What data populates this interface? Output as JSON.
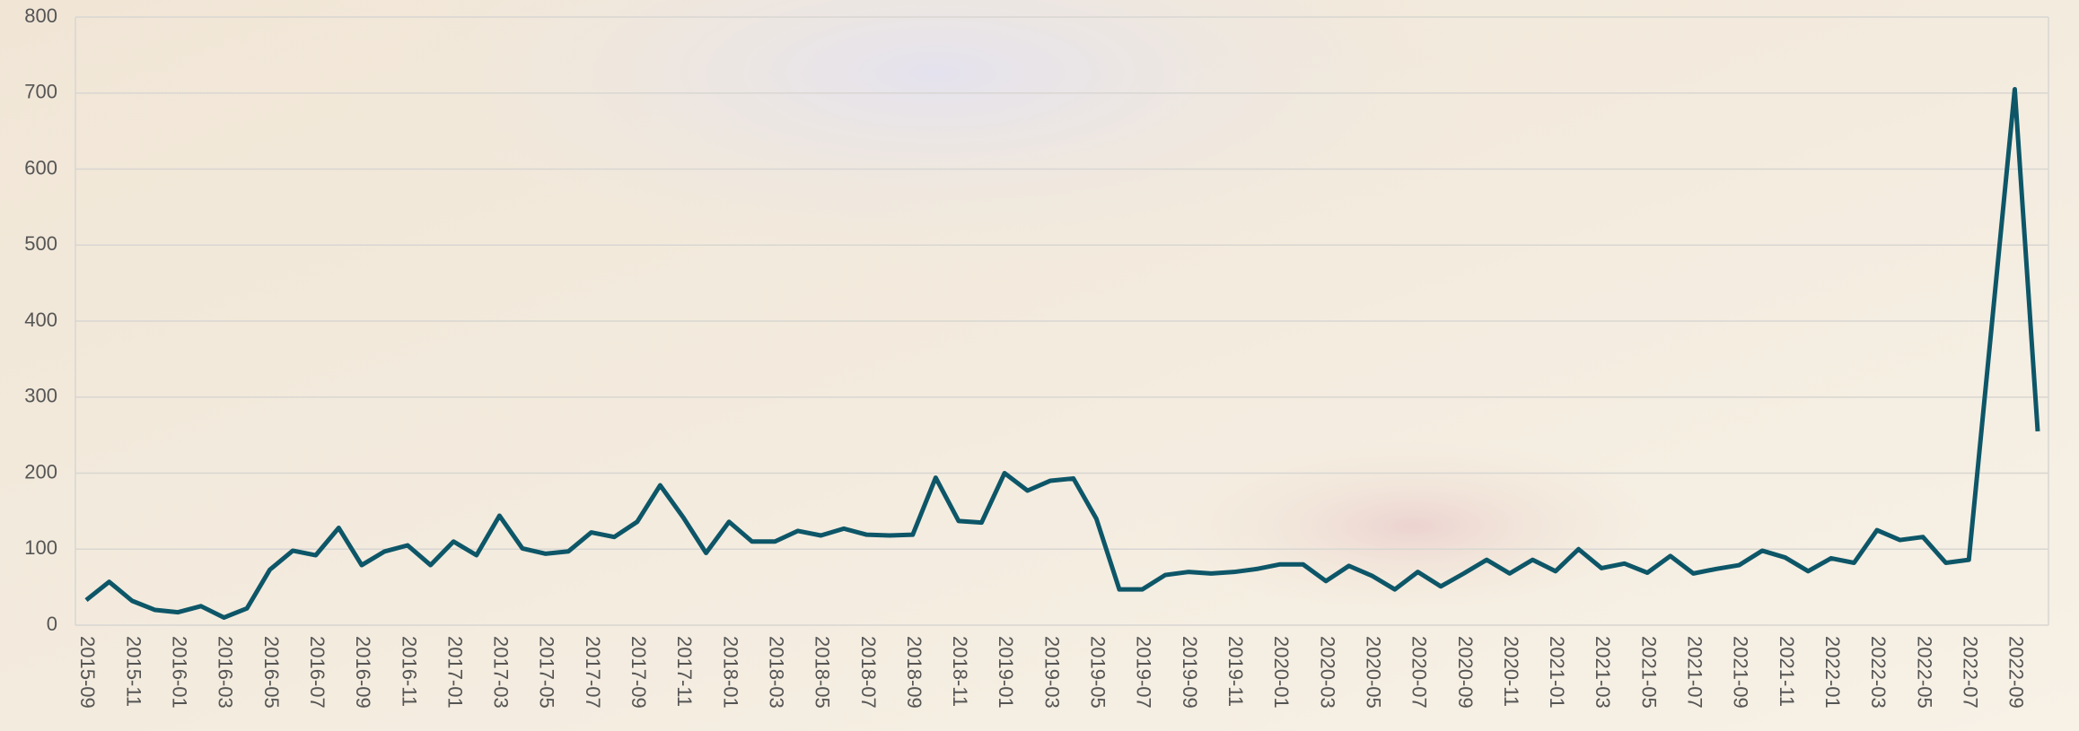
{
  "chart_data": {
    "type": "line",
    "categories": [
      "2015-09",
      null,
      "2015-11",
      null,
      "2016-01",
      null,
      "2016-03",
      null,
      "2016-05",
      null,
      "2016-07",
      null,
      "2016-09",
      null,
      "2016-11",
      null,
      "2017-01",
      null,
      "2017-03",
      null,
      "2017-05",
      null,
      "2017-07",
      null,
      "2017-09",
      null,
      "2017-11",
      null,
      "2018-01",
      null,
      "2018-03",
      null,
      "2018-05",
      null,
      "2018-07",
      null,
      "2018-09",
      null,
      "2018-11",
      null,
      "2019-01",
      null,
      "2019-03",
      null,
      "2019-05",
      null,
      "2019-07",
      null,
      "2019-09",
      null,
      "2019-11",
      null,
      "2020-01",
      null,
      "2020-03",
      null,
      "2020-05",
      null,
      "2020-07",
      null,
      "2020-09",
      null,
      "2020-11",
      null,
      "2021-01",
      null,
      "2021-03",
      null,
      "2021-05",
      null,
      "2021-07",
      null,
      "2021-09",
      null,
      "2021-11",
      null,
      "2022-01",
      null,
      "2022-03",
      null,
      "2022-05",
      null,
      "2022-07",
      null,
      "2022-09",
      null
    ],
    "values": [
      33,
      57,
      32,
      20,
      17,
      25,
      10,
      22,
      73,
      98,
      92,
      128,
      79,
      97,
      105,
      79,
      110,
      92,
      144,
      101,
      94,
      97,
      122,
      116,
      136,
      184,
      142,
      95,
      136,
      110,
      110,
      124,
      118,
      127,
      119,
      118,
      119,
      194,
      137,
      135,
      200,
      177,
      190,
      193,
      140,
      47,
      47,
      66,
      70,
      68,
      70,
      74,
      80,
      80,
      58,
      78,
      65,
      47,
      70,
      51,
      68,
      86,
      68,
      86,
      71,
      100,
      75,
      81,
      69,
      91,
      68,
      74,
      79,
      98,
      89,
      71,
      88,
      82,
      125,
      112,
      116,
      82,
      86,
      395,
      705,
      255
    ],
    "color": "#0d5668",
    "ylim": [
      0,
      800
    ],
    "yticks": [
      0,
      100,
      200,
      300,
      400,
      500,
      600,
      700,
      800
    ],
    "grid": true
  }
}
